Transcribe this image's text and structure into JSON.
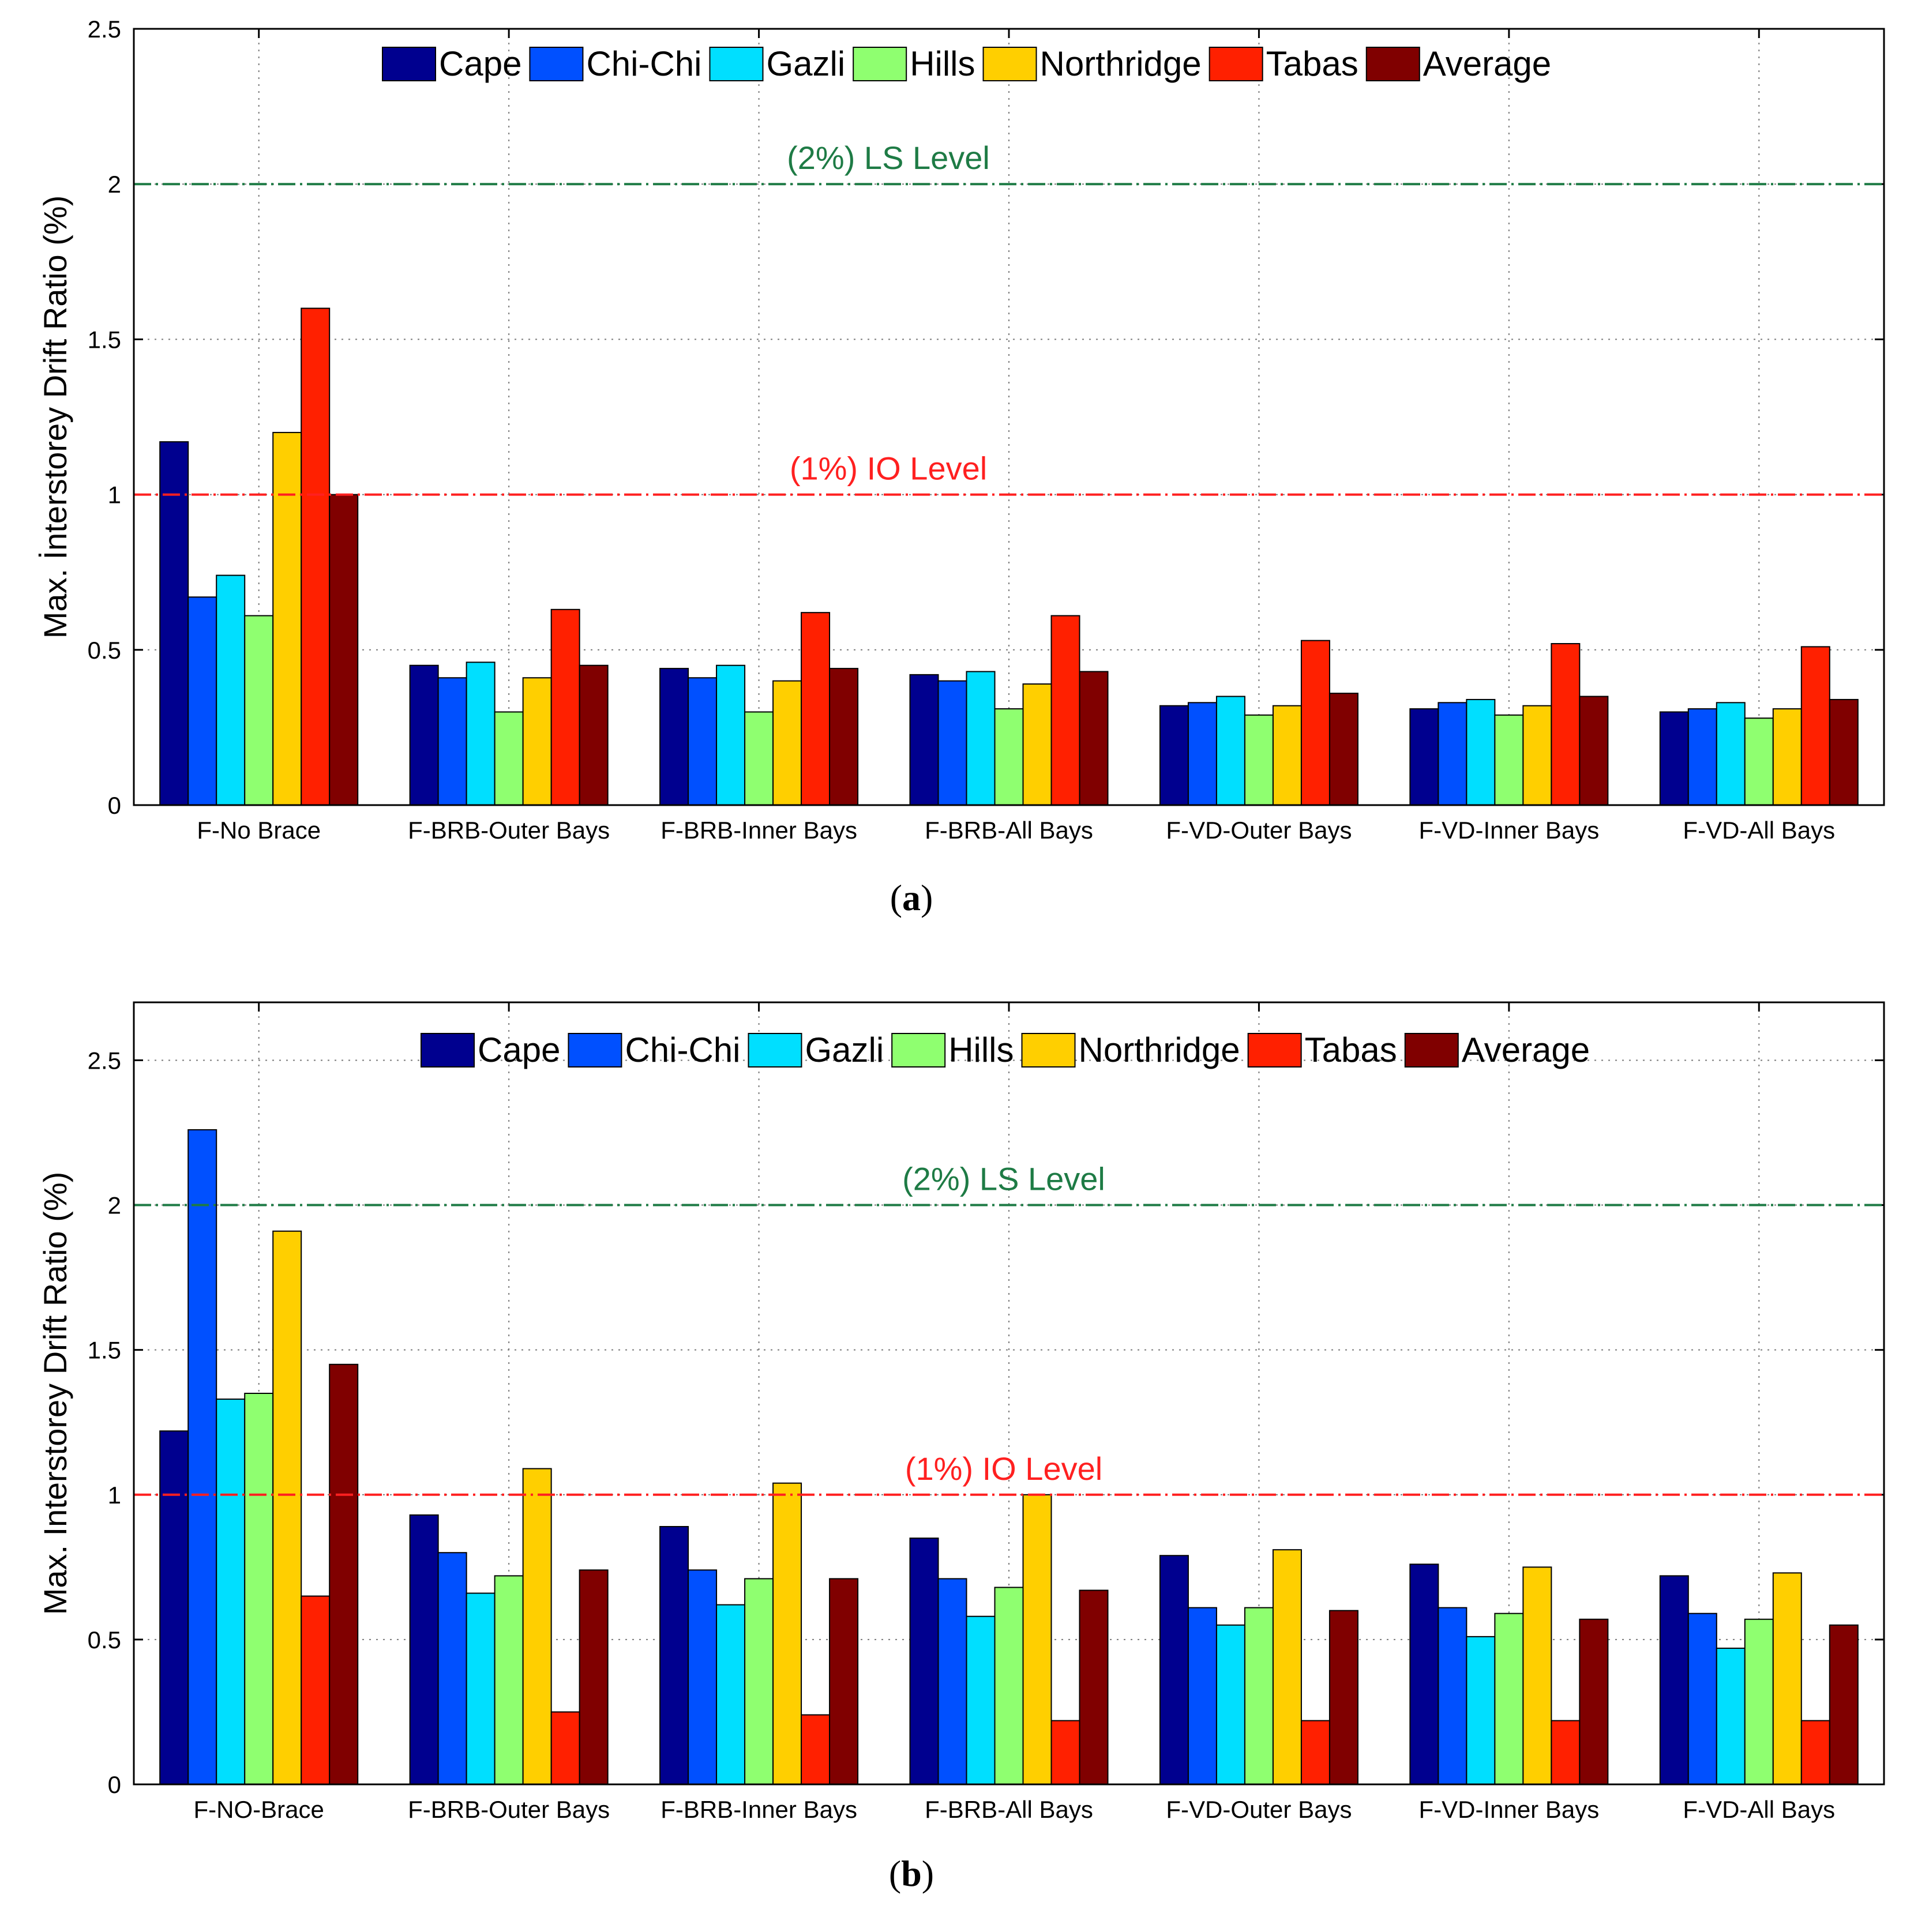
{
  "chart_data": [
    {
      "type": "bar",
      "caption": "(a)",
      "ylabel": "Max. İnterstorey Drift Ratio (%)",
      "ylim": [
        0,
        2.5
      ],
      "yticks": [
        0,
        0.5,
        1,
        1.5,
        2,
        2.5
      ],
      "ytick_labels": [
        "0",
        "0.5",
        "1",
        "1.5",
        "2",
        "2.5"
      ],
      "grid": true,
      "legend_position": "top",
      "categories": [
        "F-No Brace",
        "F-BRB-Outer Bays",
        "F-BRB-Inner Bays",
        "F-BRB-All Bays",
        "F-VD-Outer Bays",
        "F-VD-Inner Bays",
        "F-VD-All Bays"
      ],
      "series": [
        {
          "name": "Cape",
          "color": "#00008F",
          "values": [
            1.17,
            0.45,
            0.44,
            0.42,
            0.32,
            0.31,
            0.3
          ]
        },
        {
          "name": "Chi-Chi",
          "color": "#0050FF",
          "values": [
            0.67,
            0.41,
            0.41,
            0.4,
            0.33,
            0.33,
            0.31
          ]
        },
        {
          "name": "Gazli",
          "color": "#00DFFF",
          "values": [
            0.74,
            0.46,
            0.45,
            0.43,
            0.35,
            0.34,
            0.33
          ]
        },
        {
          "name": "Hills",
          "color": "#8FFF70",
          "values": [
            0.61,
            0.3,
            0.3,
            0.31,
            0.29,
            0.29,
            0.28
          ]
        },
        {
          "name": "Northridge",
          "color": "#FFCF00",
          "values": [
            1.2,
            0.41,
            0.4,
            0.39,
            0.32,
            0.32,
            0.31
          ]
        },
        {
          "name": "Tabas",
          "color": "#FF2000",
          "values": [
            1.6,
            0.63,
            0.62,
            0.61,
            0.53,
            0.52,
            0.51
          ]
        },
        {
          "name": "Average",
          "color": "#800000",
          "values": [
            1.0,
            0.45,
            0.44,
            0.43,
            0.36,
            0.35,
            0.34
          ]
        }
      ],
      "reference_lines": [
        {
          "value": 2,
          "label": "(2%) LS Level",
          "color": "#1E7B45"
        },
        {
          "value": 1,
          "label": "(1%) IO Level",
          "color": "#FF2020"
        }
      ]
    },
    {
      "type": "bar",
      "caption": "(b)",
      "ylabel": "Max. Interstorey Drift Ratio (%)",
      "ylim": [
        0,
        2.7
      ],
      "yticks": [
        0,
        0.5,
        1,
        1.5,
        2,
        2.5
      ],
      "ytick_labels": [
        "0",
        "0.5",
        "1",
        "1.5",
        "2",
        "2.5"
      ],
      "grid": true,
      "legend_position": "top",
      "categories": [
        "F-NO-Brace",
        "F-BRB-Outer Bays",
        "F-BRB-Inner Bays",
        "F-BRB-All Bays",
        "F-VD-Outer Bays",
        "F-VD-Inner Bays",
        "F-VD-All Bays"
      ],
      "series": [
        {
          "name": "Cape",
          "color": "#00008F",
          "values": [
            1.22,
            0.93,
            0.89,
            0.85,
            0.79,
            0.76,
            0.72
          ]
        },
        {
          "name": "Chi-Chi",
          "color": "#0050FF",
          "values": [
            2.26,
            0.8,
            0.74,
            0.71,
            0.61,
            0.61,
            0.59
          ]
        },
        {
          "name": "Gazli",
          "color": "#00DFFF",
          "values": [
            1.33,
            0.66,
            0.62,
            0.58,
            0.55,
            0.51,
            0.47
          ]
        },
        {
          "name": "Hills",
          "color": "#8FFF70",
          "values": [
            1.35,
            0.72,
            0.71,
            0.68,
            0.61,
            0.59,
            0.57
          ]
        },
        {
          "name": "Northridge",
          "color": "#FFCF00",
          "values": [
            1.91,
            1.09,
            1.04,
            1.0,
            0.81,
            0.75,
            0.73
          ]
        },
        {
          "name": "Tabas",
          "color": "#FF2000",
          "values": [
            0.65,
            0.25,
            0.24,
            0.22,
            0.22,
            0.22,
            0.22
          ]
        },
        {
          "name": "Average",
          "color": "#800000",
          "values": [
            1.45,
            0.74,
            0.71,
            0.67,
            0.6,
            0.57,
            0.55
          ]
        }
      ],
      "reference_lines": [
        {
          "value": 2,
          "label": "(2%) LS Level",
          "color": "#1E7B45"
        },
        {
          "value": 1,
          "label": "(1%) IO Level",
          "color": "#FF2020"
        }
      ]
    }
  ]
}
